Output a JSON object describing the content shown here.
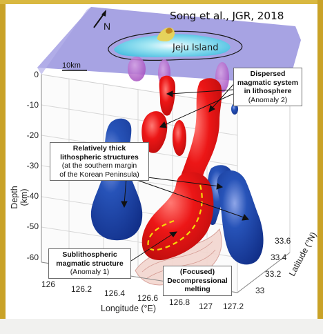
{
  "citation": "Song et al., JGR, 2018",
  "map": {
    "island_label": "Jeju Island",
    "scale_label": "10km",
    "north_label": "N"
  },
  "axes": {
    "z": {
      "label": "Depth (km)",
      "ticks": [
        "0",
        "-10",
        "-20",
        "-30",
        "-40",
        "-50",
        "-60"
      ]
    },
    "x": {
      "label": "Longitude (°E)",
      "ticks": [
        "126",
        "126.2",
        "126.4",
        "126.6",
        "126.8",
        "127",
        "127.2"
      ]
    },
    "y": {
      "label": "Latitude (°N)",
      "ticks": [
        "33",
        "33.2",
        "33.4",
        "33.6"
      ]
    }
  },
  "annotations": {
    "dispersed": {
      "line1": "Dispersed",
      "line2": "magmatic system",
      "line3": "in lithosphere",
      "line4": "(Anomaly 2)"
    },
    "lithospheric": {
      "line1": "Relatively thick",
      "line2": "lithospheric structures",
      "line3": "(at the southern margin",
      "line4": "of the Korean Peninsula)"
    },
    "sublithospheric": {
      "line1": "Sublithospheric",
      "line2": "magmatic structure",
      "line3": "(Anomaly 1)"
    },
    "decompressional": {
      "line1": "(Focused)",
      "line2": "Decompressional",
      "line3": "melting"
    }
  },
  "colors": {
    "frame": "#c9a227",
    "map_plane": "#9d99e0",
    "high_velocity": "#1c47a8",
    "low_velocity": "#e4111b",
    "ghost": "#a247c0",
    "path": "#f5d90a",
    "melt_zone": "#f3d6cf"
  }
}
